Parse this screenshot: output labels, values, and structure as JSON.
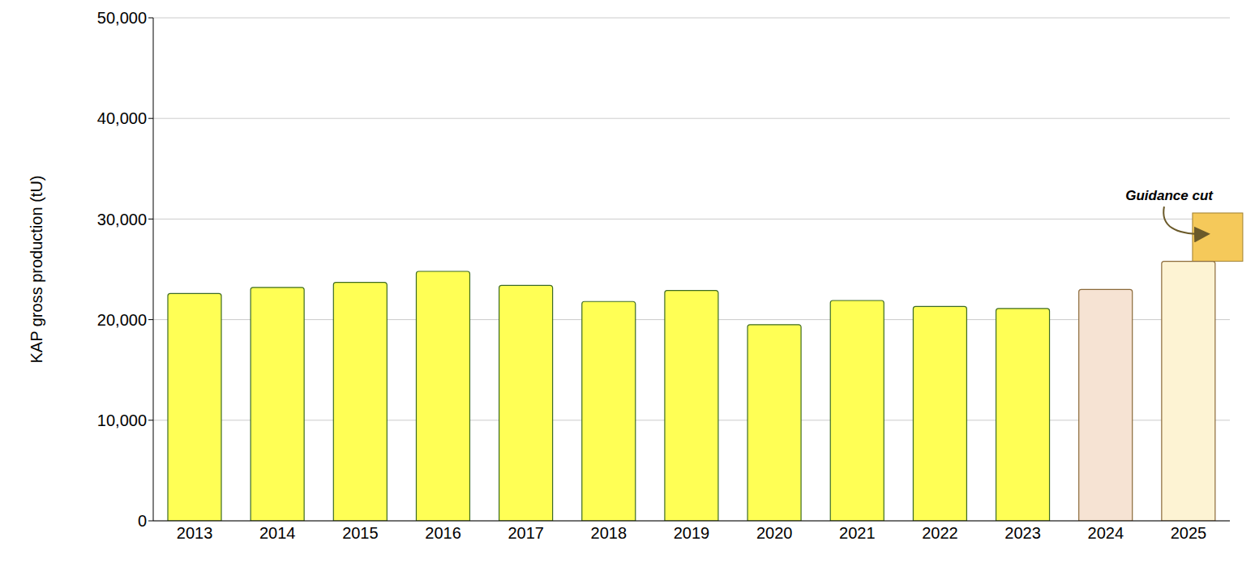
{
  "chart_data": {
    "type": "bar",
    "y_label": "KAP gross production (tU)",
    "categories": [
      "2013",
      "2014",
      "2015",
      "2016",
      "2017",
      "2018",
      "2019",
      "2020",
      "2021",
      "2022",
      "2023",
      "2024",
      "2025"
    ],
    "values": [
      22600,
      23200,
      23700,
      24800,
      23400,
      21800,
      22900,
      19500,
      21900,
      21300,
      21100,
      23000,
      25800
    ],
    "colors": [
      "#ffff55",
      "#ffff55",
      "#ffff55",
      "#ffff55",
      "#ffff55",
      "#ffff55",
      "#ffff55",
      "#ffff55",
      "#ffff55",
      "#ffff55",
      "#ffff55",
      "#f6e3d3",
      "#fdf3d3"
    ],
    "ylim": [
      0,
      50000
    ],
    "yticks": [
      0,
      {
        "value": 10000,
        "label": "10,000"
      },
      {
        "value": 20000,
        "label": "20,000"
      },
      {
        "value": 30000,
        "label": "30,000"
      },
      {
        "value": 40000,
        "label": "40,000"
      },
      {
        "value": 50000,
        "label": "50,000"
      }
    ],
    "grid": true,
    "annotations": [
      {
        "text": "Guidance cut",
        "category": "2025",
        "from": 25800,
        "to": 30600,
        "color": "#f5c95a"
      }
    ]
  }
}
